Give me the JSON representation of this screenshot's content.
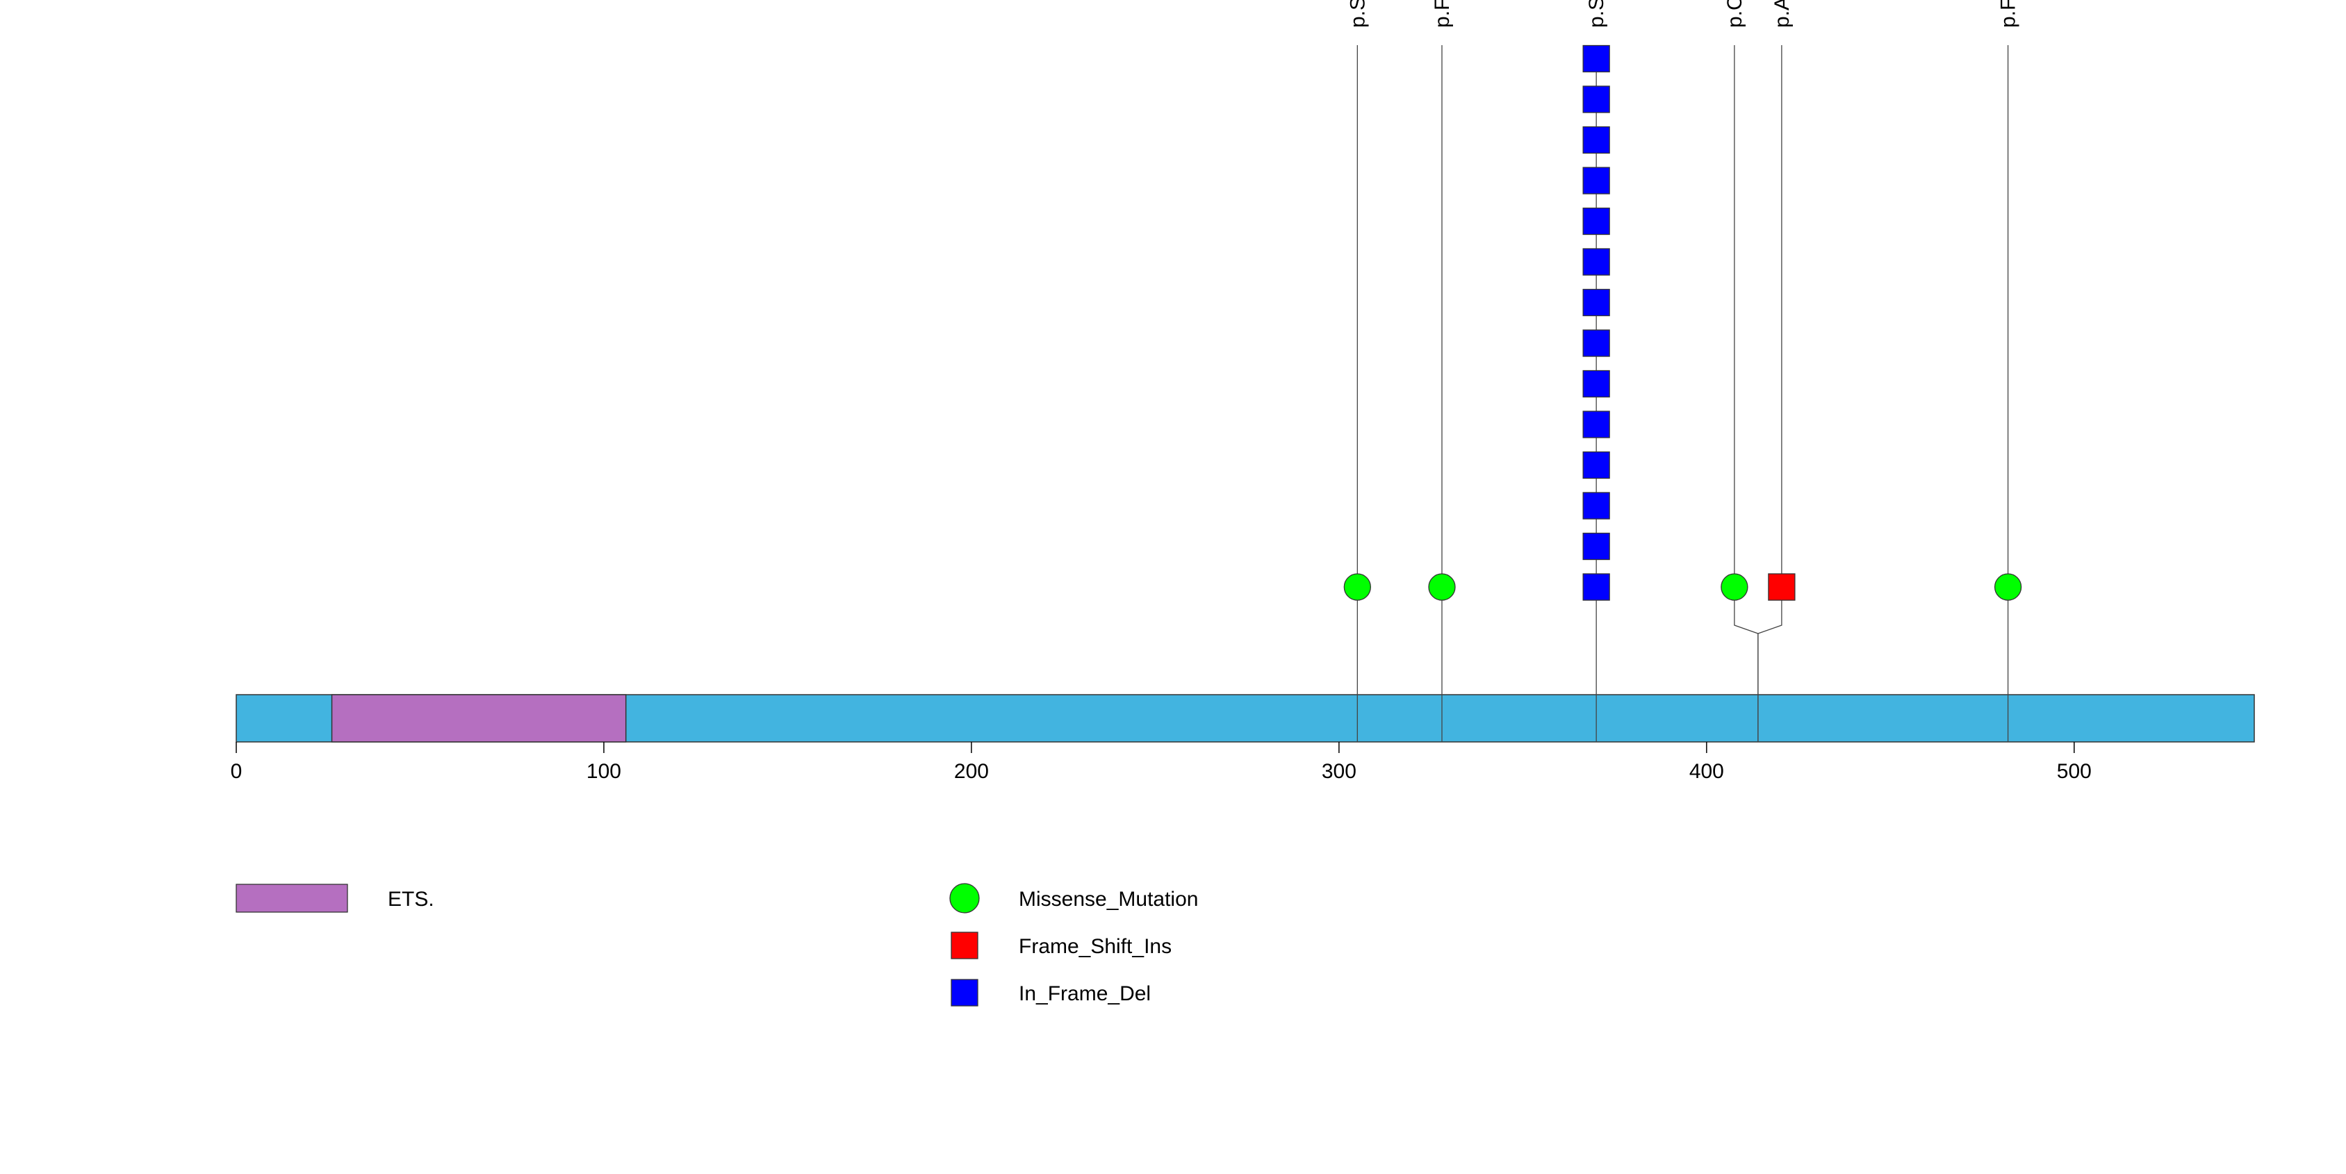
{
  "chart_data": {
    "type": "lollipop",
    "xlim": [
      0,
      549
    ],
    "x_ticks": [
      0,
      100,
      200,
      300,
      400,
      500
    ],
    "x_tick_labels": [
      "0",
      "100",
      "200",
      "300",
      "400",
      "500"
    ],
    "protein_color": "#42b4e0",
    "domains": [
      {
        "name": "ETS.",
        "start": 26,
        "end": 106,
        "color": "#b56fc0"
      }
    ],
    "mutation_types": [
      {
        "name": "Missense_Mutation",
        "shape": "circle",
        "color": "#00ff00"
      },
      {
        "name": "Frame_Shift_Ins",
        "shape": "square",
        "color": "#ff0000"
      },
      {
        "name": "In_Frame_Del",
        "shape": "square",
        "color": "#0000ff"
      }
    ],
    "mutations": [
      {
        "position": 305,
        "type": "Missense_Mutation",
        "count": 1,
        "label": "p.S"
      },
      {
        "position": 328,
        "type": "Missense_Mutation",
        "count": 1,
        "label": "p.F"
      },
      {
        "position": 370,
        "type": "In_Frame_Del",
        "count": 14,
        "label": "p.S"
      },
      {
        "position": 414,
        "type": "Missense_Mutation",
        "count": 1,
        "label": "p.C"
      },
      {
        "position": 414,
        "type": "Frame_Shift_Ins",
        "count": 1,
        "label": "p.A"
      },
      {
        "position": 482,
        "type": "Missense_Mutation",
        "count": 1,
        "label": "p.F"
      }
    ]
  }
}
